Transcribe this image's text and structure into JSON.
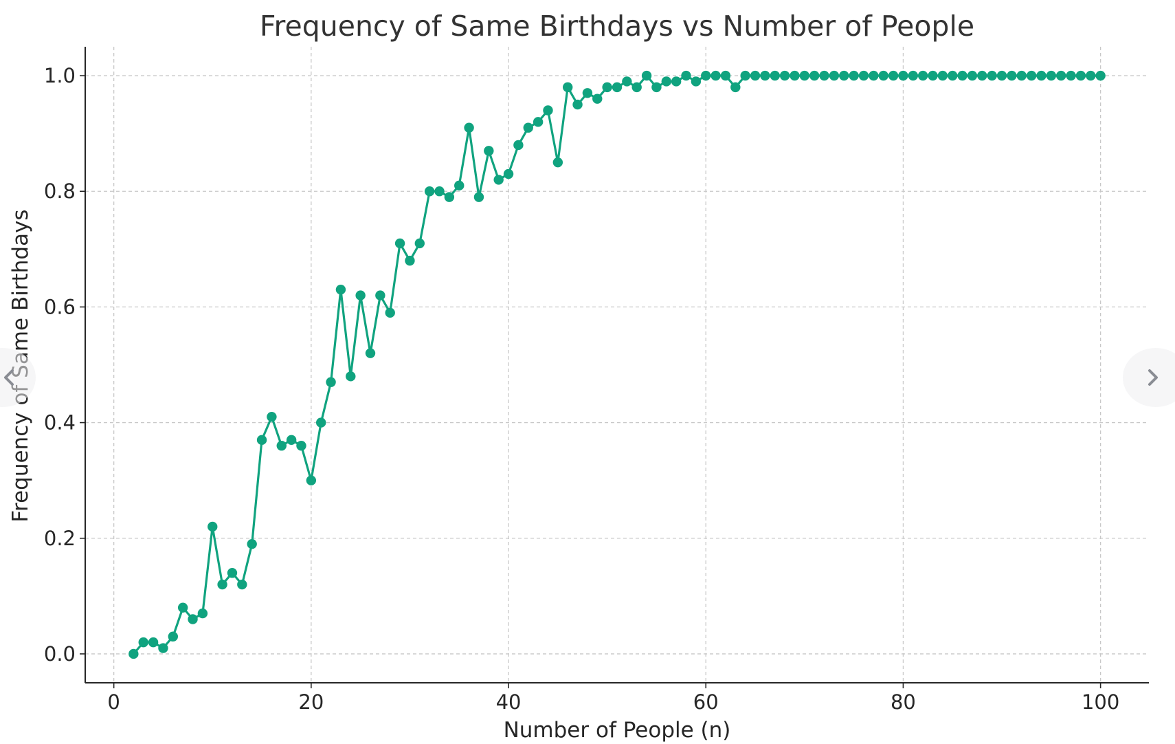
{
  "chart_data": {
    "type": "line",
    "title": "Frequency of Same Birthdays vs Number of People",
    "xlabel": "Number of People (n)",
    "ylabel": "Frequency of Same Birthdays",
    "xlim": [
      -2.9,
      104.9
    ],
    "ylim": [
      -0.05,
      1.05
    ],
    "xticks": [
      0,
      20,
      40,
      60,
      80,
      100
    ],
    "yticks": [
      0.0,
      0.2,
      0.4,
      0.6,
      0.8,
      1.0
    ],
    "xtick_labels": [
      "0",
      "20",
      "40",
      "60",
      "80",
      "100"
    ],
    "ytick_labels": [
      "0.0",
      "0.2",
      "0.4",
      "0.6",
      "0.8",
      "1.0"
    ],
    "grid": true,
    "marker": "circle",
    "color": "#10a37f",
    "x": [
      2,
      3,
      4,
      5,
      6,
      7,
      8,
      9,
      10,
      11,
      12,
      13,
      14,
      15,
      16,
      17,
      18,
      19,
      20,
      21,
      22,
      23,
      24,
      25,
      26,
      27,
      28,
      29,
      30,
      31,
      32,
      33,
      34,
      35,
      36,
      37,
      38,
      39,
      40,
      41,
      42,
      43,
      44,
      45,
      46,
      47,
      48,
      49,
      50,
      51,
      52,
      53,
      54,
      55,
      56,
      57,
      58,
      59,
      60,
      61,
      62,
      63,
      64,
      65,
      66,
      67,
      68,
      69,
      70,
      71,
      72,
      73,
      74,
      75,
      76,
      77,
      78,
      79,
      80,
      81,
      82,
      83,
      84,
      85,
      86,
      87,
      88,
      89,
      90,
      91,
      92,
      93,
      94,
      95,
      96,
      97,
      98,
      99,
      100
    ],
    "y": [
      0.0,
      0.02,
      0.02,
      0.01,
      0.03,
      0.08,
      0.06,
      0.07,
      0.22,
      0.12,
      0.14,
      0.12,
      0.19,
      0.37,
      0.41,
      0.36,
      0.37,
      0.36,
      0.3,
      0.4,
      0.47,
      0.63,
      0.48,
      0.62,
      0.52,
      0.62,
      0.59,
      0.71,
      0.68,
      0.71,
      0.8,
      0.8,
      0.79,
      0.81,
      0.91,
      0.79,
      0.87,
      0.82,
      0.83,
      0.88,
      0.91,
      0.92,
      0.94,
      0.85,
      0.98,
      0.95,
      0.97,
      0.96,
      0.98,
      0.98,
      0.99,
      0.98,
      1.0,
      0.98,
      0.99,
      0.99,
      1.0,
      0.99,
      1.0,
      1.0,
      1.0,
      0.98,
      1.0,
      1.0,
      1.0,
      1.0,
      1.0,
      1.0,
      1.0,
      1.0,
      1.0,
      1.0,
      1.0,
      1.0,
      1.0,
      1.0,
      1.0,
      1.0,
      1.0,
      1.0,
      1.0,
      1.0,
      1.0,
      1.0,
      1.0,
      1.0,
      1.0,
      1.0,
      1.0,
      1.0,
      1.0,
      1.0,
      1.0,
      1.0,
      1.0,
      1.0,
      1.0,
      1.0,
      1.0
    ]
  },
  "nav": {
    "prev_icon": "chevron-left-icon",
    "next_icon": "chevron-right-icon"
  }
}
